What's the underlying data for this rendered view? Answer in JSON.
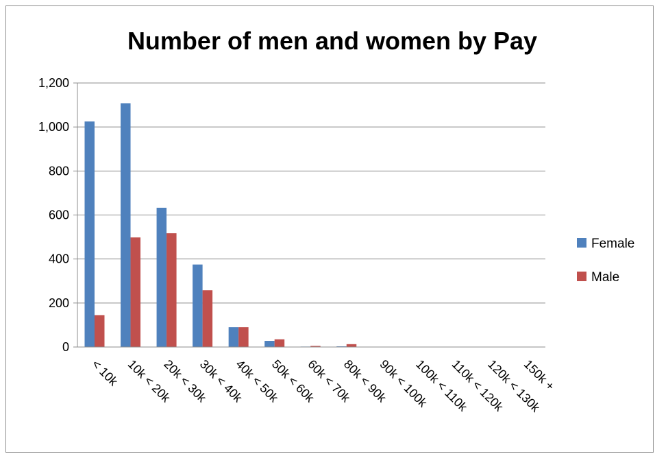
{
  "chart_data": {
    "type": "bar",
    "title": "Number of men and women by Pay",
    "xlabel": "",
    "ylabel": "",
    "ylim": [
      0,
      1200
    ],
    "yticks": [
      0,
      200,
      400,
      600,
      800,
      1000,
      1200
    ],
    "ytick_labels": [
      "0",
      "200",
      "400",
      "600",
      "800",
      "1,000",
      "1,200"
    ],
    "grid": true,
    "legend_position": "right",
    "categories": [
      "< 10k",
      "10k < 20k",
      "20k < 30k",
      "30k < 40k",
      "40k < 50k",
      "50k < 60k",
      "60k < 70k",
      "80k < 90k",
      "90k < 100k",
      "100k < 110k",
      "110k < 120k",
      "120k < 130k",
      "150k +"
    ],
    "series": [
      {
        "name": "Female",
        "color": "#4F81BD",
        "values": [
          1025,
          1108,
          633,
          375,
          90,
          28,
          2,
          3,
          0,
          0,
          0,
          0,
          0
        ]
      },
      {
        "name": "Male",
        "color": "#C0504D",
        "values": [
          145,
          498,
          517,
          258,
          90,
          35,
          5,
          13,
          1,
          0,
          0,
          0,
          0
        ]
      }
    ]
  }
}
